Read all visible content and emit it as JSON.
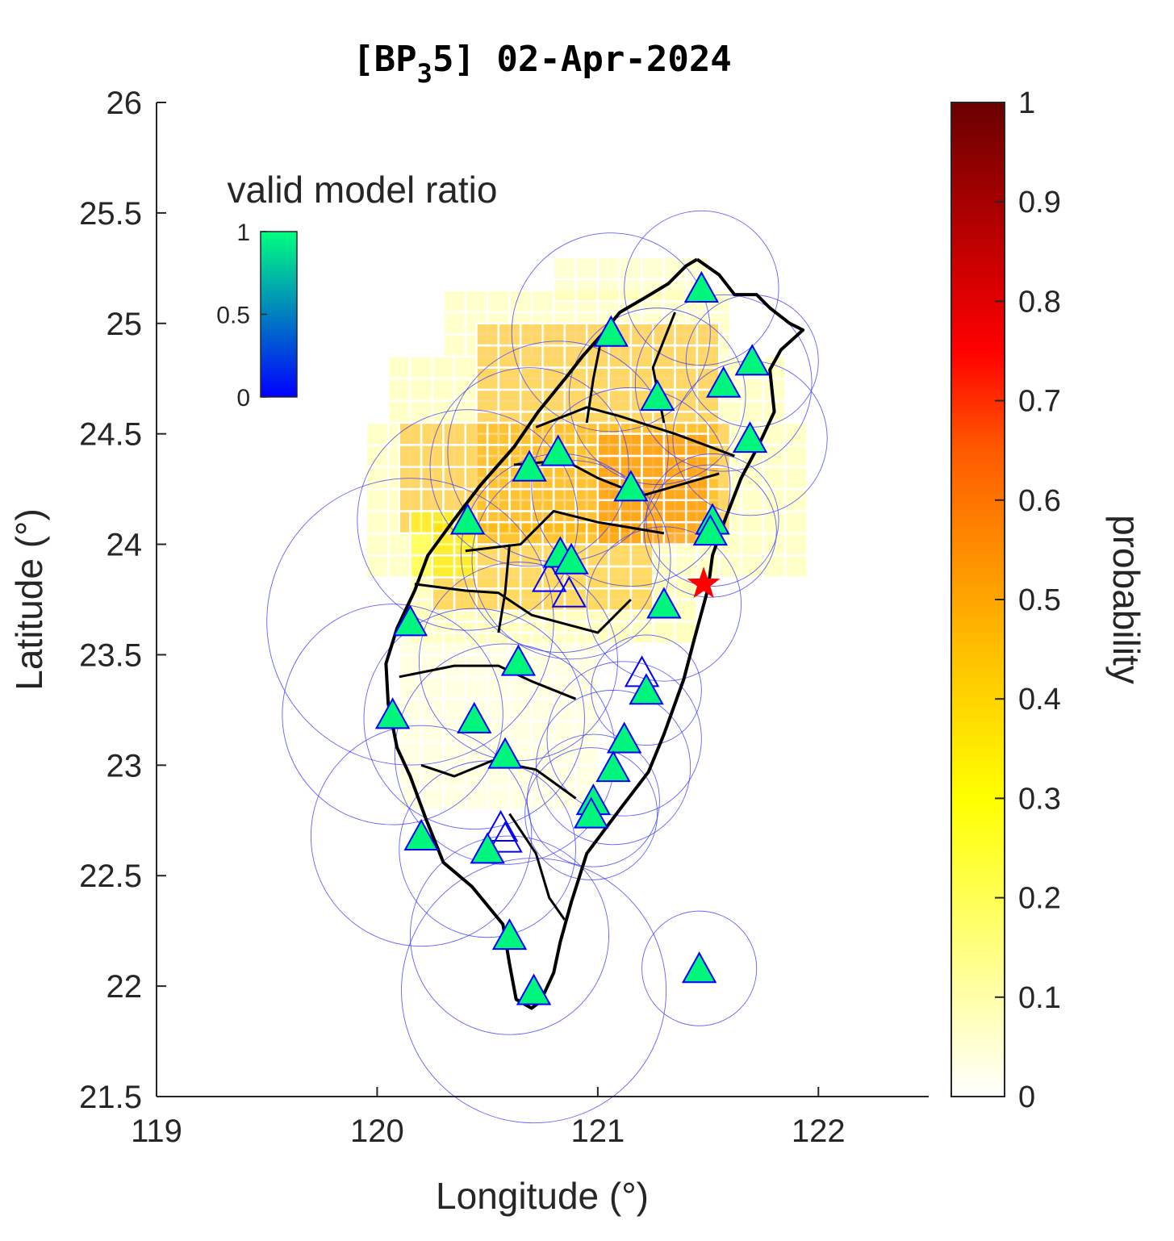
{
  "title": {
    "prefix": "[BP",
    "subscript": "3",
    "suffix": "5] 02-Apr-2024"
  },
  "axes": {
    "xlabel": "Longitude (°)",
    "ylabel": "Latitude (°)",
    "xlim": [
      119,
      122.5
    ],
    "ylim": [
      21.5,
      26
    ],
    "xticks": [
      {
        "value": 119,
        "label": "119"
      },
      {
        "value": 120,
        "label": "120"
      },
      {
        "value": 121,
        "label": "121"
      },
      {
        "value": 122,
        "label": "122"
      }
    ],
    "yticks": [
      {
        "value": 21.5,
        "label": "21.5"
      },
      {
        "value": 22,
        "label": "22"
      },
      {
        "value": 22.5,
        "label": "22.5"
      },
      {
        "value": 23,
        "label": "23"
      },
      {
        "value": 23.5,
        "label": "23.5"
      },
      {
        "value": 24,
        "label": "24"
      },
      {
        "value": 24.5,
        "label": "24.5"
      },
      {
        "value": 25,
        "label": "25"
      },
      {
        "value": 25.5,
        "label": "25.5"
      },
      {
        "value": 26,
        "label": "26"
      }
    ]
  },
  "colorbar": {
    "label": "probability",
    "colormap": "hot (reversed)",
    "range": [
      0,
      1
    ],
    "ticks": [
      {
        "value": 0,
        "label": "0"
      },
      {
        "value": 0.1,
        "label": "0.1"
      },
      {
        "value": 0.2,
        "label": "0.2"
      },
      {
        "value": 0.3,
        "label": "0.3"
      },
      {
        "value": 0.4,
        "label": "0.4"
      },
      {
        "value": 0.5,
        "label": "0.5"
      },
      {
        "value": 0.6,
        "label": "0.6"
      },
      {
        "value": 0.7,
        "label": "0.7"
      },
      {
        "value": 0.8,
        "label": "0.8"
      },
      {
        "value": 0.9,
        "label": "0.9"
      },
      {
        "value": 1,
        "label": "1"
      }
    ]
  },
  "ratio_legend": {
    "title": "valid model ratio",
    "range": [
      0,
      1
    ],
    "ticks": [
      {
        "value": 0,
        "label": "0"
      },
      {
        "value": 0.5,
        "label": "0.5"
      },
      {
        "value": 1,
        "label": "1"
      }
    ],
    "color_low": "#0000ff",
    "color_high": "#00ff80"
  },
  "colors": {
    "station_fill": "#00f57d",
    "station_edge": "#0000ff",
    "epicenter": "#ff0000",
    "coast": "#000000",
    "circle": "#3b3bff"
  },
  "chart_data": {
    "type": "heatmap",
    "grid_step_deg": 0.1,
    "zones": [
      {
        "lon": [
          119.95,
          121.9
        ],
        "lat": [
          23.85,
          24.55
        ],
        "probability": 0.13
      },
      {
        "lon": [
          120.05,
          121.8
        ],
        "lat": [
          24.55,
          24.85
        ],
        "probability": 0.13
      },
      {
        "lon": [
          120.3,
          121.6
        ],
        "lat": [
          24.85,
          25.1
        ],
        "probability": 0.12
      },
      {
        "lon": [
          120.8,
          121.45
        ],
        "lat": [
          25.1,
          25.25
        ],
        "probability": 0.1
      },
      {
        "lon": [
          120.15,
          121.4
        ],
        "lat": [
          23.55,
          23.85
        ],
        "probability": 0.15
      },
      {
        "lon": [
          120.1,
          120.95
        ],
        "lat": [
          22.8,
          23.55
        ],
        "probability": 0.07
      },
      {
        "lon": [
          120.45,
          121.55
        ],
        "lat": [
          24.0,
          25.0
        ],
        "probability": 0.48
      },
      {
        "lon": [
          120.1,
          121.6
        ],
        "lat": [
          24.05,
          24.55
        ],
        "probability": 0.48
      },
      {
        "lon": [
          120.25,
          121.2
        ],
        "lat": [
          23.7,
          24.05
        ],
        "probability": 0.47
      },
      {
        "lon": [
          121.0,
          121.45
        ],
        "lat": [
          24.0,
          24.45
        ],
        "probability": 0.55
      },
      {
        "lon": [
          120.15,
          120.45
        ],
        "lat": [
          23.85,
          24.15
        ],
        "probability": 0.3
      }
    ],
    "epicenter": {
      "lon": 121.48,
      "lat": 23.82
    },
    "stations": [
      {
        "lon": 121.47,
        "lat": 25.16,
        "ratio": 1,
        "radius_deg": 0.35
      },
      {
        "lon": 121.06,
        "lat": 24.96,
        "ratio": 1,
        "radius_deg": 0.45
      },
      {
        "lon": 121.57,
        "lat": 24.73,
        "ratio": 1,
        "radius_deg": 0.4
      },
      {
        "lon": 121.7,
        "lat": 24.83,
        "ratio": 1,
        "radius_deg": 0.3
      },
      {
        "lon": 121.27,
        "lat": 24.67,
        "ratio": 1,
        "radius_deg": 0.4
      },
      {
        "lon": 121.69,
        "lat": 24.48,
        "ratio": 1,
        "radius_deg": 0.35
      },
      {
        "lon": 120.82,
        "lat": 24.42,
        "ratio": 1,
        "radius_deg": 0.5
      },
      {
        "lon": 120.69,
        "lat": 24.35,
        "ratio": 1,
        "radius_deg": 0.45
      },
      {
        "lon": 121.15,
        "lat": 24.26,
        "ratio": 1,
        "radius_deg": 0.45
      },
      {
        "lon": 120.41,
        "lat": 24.11,
        "ratio": 1,
        "radius_deg": 0.5
      },
      {
        "lon": 121.52,
        "lat": 24.11,
        "ratio": 1,
        "radius_deg": 0.3
      },
      {
        "lon": 121.51,
        "lat": 24.06,
        "ratio": 1,
        "radius_deg": 0.3
      },
      {
        "lon": 120.83,
        "lat": 23.96,
        "ratio": 1,
        "radius_deg": 0.45
      },
      {
        "lon": 120.88,
        "lat": 23.93,
        "ratio": 1,
        "radius_deg": 0.45
      },
      {
        "lon": 121.3,
        "lat": 23.73,
        "ratio": 1,
        "radius_deg": 0.35
      },
      {
        "lon": 120.15,
        "lat": 23.65,
        "ratio": 1,
        "radius_deg": 0.65
      },
      {
        "lon": 120.64,
        "lat": 23.47,
        "ratio": 1,
        "radius_deg": 0.45
      },
      {
        "lon": 121.22,
        "lat": 23.34,
        "ratio": 1,
        "radius_deg": 0.25
      },
      {
        "lon": 120.07,
        "lat": 23.23,
        "ratio": 1,
        "radius_deg": 0.5
      },
      {
        "lon": 120.44,
        "lat": 23.21,
        "ratio": 1,
        "radius_deg": 0.5
      },
      {
        "lon": 121.12,
        "lat": 23.12,
        "ratio": 1,
        "radius_deg": 0.35
      },
      {
        "lon": 120.58,
        "lat": 23.05,
        "ratio": 1,
        "radius_deg": 0.5
      },
      {
        "lon": 121.07,
        "lat": 22.99,
        "ratio": 1,
        "radius_deg": 0.35
      },
      {
        "lon": 120.98,
        "lat": 22.84,
        "ratio": 1,
        "radius_deg": 0.3
      },
      {
        "lon": 120.97,
        "lat": 22.78,
        "ratio": 1,
        "radius_deg": 0.3
      },
      {
        "lon": 120.2,
        "lat": 22.68,
        "ratio": 1,
        "radius_deg": 0.5
      },
      {
        "lon": 120.5,
        "lat": 22.62,
        "ratio": 1,
        "radius_deg": 0.4
      },
      {
        "lon": 120.6,
        "lat": 22.23,
        "ratio": 1,
        "radius_deg": 0.45
      },
      {
        "lon": 121.46,
        "lat": 22.08,
        "ratio": 1,
        "radius_deg": 0.26
      },
      {
        "lon": 120.71,
        "lat": 21.98,
        "ratio": 1,
        "radius_deg": 0.6
      },
      {
        "lon": 121.2,
        "lat": 23.42,
        "ratio": 0,
        "radius_deg": 0
      },
      {
        "lon": 120.78,
        "lat": 23.85,
        "ratio": 0,
        "radius_deg": 0
      },
      {
        "lon": 120.87,
        "lat": 23.78,
        "ratio": 0,
        "radius_deg": 0
      },
      {
        "lon": 120.56,
        "lat": 22.72,
        "ratio": 0,
        "radius_deg": 0
      },
      {
        "lon": 120.58,
        "lat": 22.67,
        "ratio": 0,
        "radius_deg": 0
      }
    ],
    "coastline": [
      [
        121.45,
        25.29
      ],
      [
        121.55,
        25.22
      ],
      [
        121.62,
        25.13
      ],
      [
        121.72,
        25.13
      ],
      [
        121.78,
        25.07
      ],
      [
        121.87,
        25.0
      ],
      [
        121.93,
        24.97
      ],
      [
        121.83,
        24.88
      ],
      [
        121.78,
        24.79
      ],
      [
        121.8,
        24.6
      ],
      [
        121.73,
        24.45
      ],
      [
        121.65,
        24.3
      ],
      [
        121.58,
        24.12
      ],
      [
        121.52,
        23.95
      ],
      [
        121.5,
        23.8
      ],
      [
        121.44,
        23.58
      ],
      [
        121.39,
        23.39
      ],
      [
        121.3,
        23.14
      ],
      [
        121.23,
        22.97
      ],
      [
        121.1,
        22.8
      ],
      [
        120.95,
        22.6
      ],
      [
        120.88,
        22.38
      ],
      [
        120.83,
        22.2
      ],
      [
        120.8,
        22.06
      ],
      [
        120.74,
        21.93
      ],
      [
        120.7,
        21.9
      ],
      [
        120.63,
        21.94
      ],
      [
        120.6,
        22.1
      ],
      [
        120.57,
        22.28
      ],
      [
        120.43,
        22.45
      ],
      [
        120.3,
        22.56
      ],
      [
        120.22,
        22.76
      ],
      [
        120.15,
        22.95
      ],
      [
        120.09,
        23.08
      ],
      [
        120.05,
        23.28
      ],
      [
        120.04,
        23.46
      ],
      [
        120.09,
        23.62
      ],
      [
        120.17,
        23.79
      ],
      [
        120.23,
        23.95
      ],
      [
        120.34,
        24.1
      ],
      [
        120.47,
        24.27
      ],
      [
        120.62,
        24.44
      ],
      [
        120.73,
        24.6
      ],
      [
        120.86,
        24.76
      ],
      [
        120.93,
        24.85
      ],
      [
        121.01,
        24.94
      ],
      [
        121.1,
        25.05
      ],
      [
        121.22,
        25.12
      ],
      [
        121.32,
        25.18
      ],
      [
        121.4,
        25.26
      ],
      [
        121.45,
        25.29
      ]
    ],
    "boundaries": [
      [
        [
          120.72,
          24.53
        ],
        [
          120.95,
          24.62
        ],
        [
          121.1,
          24.58
        ],
        [
          121.35,
          24.5
        ],
        [
          121.62,
          24.4
        ]
      ],
      [
        [
          120.62,
          24.36
        ],
        [
          120.85,
          24.38
        ],
        [
          121.0,
          24.3
        ],
        [
          121.2,
          24.22
        ],
        [
          121.55,
          24.32
        ]
      ],
      [
        [
          120.4,
          23.97
        ],
        [
          120.65,
          24.0
        ],
        [
          120.8,
          24.15
        ],
        [
          121.0,
          24.1
        ],
        [
          121.3,
          24.05
        ]
      ],
      [
        [
          120.17,
          23.82
        ],
        [
          120.4,
          23.79
        ],
        [
          120.55,
          23.78
        ],
        [
          120.7,
          23.68
        ],
        [
          121.0,
          23.6
        ],
        [
          121.15,
          23.75
        ]
      ],
      [
        [
          120.6,
          24.0
        ],
        [
          120.58,
          23.78
        ],
        [
          120.55,
          23.6
        ]
      ],
      [
        [
          120.1,
          23.4
        ],
        [
          120.35,
          23.45
        ],
        [
          120.55,
          23.45
        ],
        [
          120.7,
          23.38
        ],
        [
          120.9,
          23.3
        ]
      ],
      [
        [
          120.2,
          23.0
        ],
        [
          120.35,
          22.95
        ],
        [
          120.52,
          23.02
        ],
        [
          120.72,
          22.98
        ],
        [
          120.9,
          22.85
        ]
      ],
      [
        [
          120.95,
          24.55
        ],
        [
          120.98,
          24.75
        ],
        [
          121.02,
          24.95
        ]
      ],
      [
        [
          121.3,
          24.55
        ],
        [
          121.25,
          24.8
        ],
        [
          121.35,
          25.05
        ]
      ],
      [
        [
          120.6,
          22.78
        ],
        [
          120.72,
          22.6
        ],
        [
          120.78,
          22.4
        ],
        [
          120.85,
          22.3
        ]
      ]
    ]
  }
}
